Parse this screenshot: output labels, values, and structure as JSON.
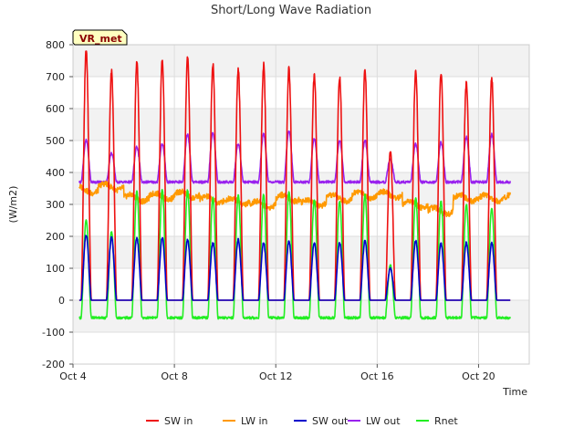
{
  "chart_data": {
    "type": "line",
    "title": "Short/Long Wave Radiation",
    "xlabel": "Time",
    "ylabel": "(W/m2)",
    "badge": "VR_met",
    "ylim": [
      -200,
      800
    ],
    "yticks": [
      -200,
      -100,
      0,
      100,
      200,
      300,
      400,
      500,
      600,
      700,
      800
    ],
    "xlim": [
      "2023-10-04",
      "2023-10-22"
    ],
    "xticks": [
      {
        "date": "2023-10-04",
        "label": "Oct 4"
      },
      {
        "date": "2023-10-08",
        "label": "Oct 8"
      },
      {
        "date": "2023-10-12",
        "label": "Oct 12"
      },
      {
        "date": "2023-10-16",
        "label": "Oct 16"
      },
      {
        "date": "2023-10-20",
        "label": "Oct 20"
      }
    ],
    "grid": true,
    "legend_position": "bottom",
    "series": [
      {
        "name": "SW in",
        "color": "#ee1111",
        "daily_peaks": [
          780,
          715,
          745,
          755,
          760,
          735,
          720,
          735,
          725,
          705,
          700,
          725,
          470,
          720,
          715,
          685,
          695
        ]
      },
      {
        "name": "LW in",
        "color": "#ff9900",
        "daily_levels": [
          345,
          355,
          320,
          325,
          330,
          315,
          310,
          300,
          320,
          305,
          320,
          330,
          330,
          300,
          280,
          320,
          320
        ]
      },
      {
        "name": "SW out",
        "color": "#0000cc",
        "daily_peaks": [
          205,
          195,
          195,
          195,
          190,
          180,
          190,
          180,
          185,
          180,
          180,
          185,
          100,
          185,
          180,
          180,
          180
        ]
      },
      {
        "name": "LW out",
        "color": "#9922ee",
        "daily_peaks": [
          500,
          460,
          480,
          490,
          520,
          525,
          490,
          520,
          530,
          505,
          500,
          500,
          440,
          490,
          495,
          510,
          520
        ],
        "night_level": 370
      },
      {
        "name": "Rnet",
        "color": "#22ee22",
        "daily_peaks": [
          250,
          215,
          340,
          345,
          345,
          320,
          330,
          330,
          340,
          315,
          310,
          330,
          110,
          320,
          310,
          300,
          290
        ],
        "night_level": -55
      }
    ],
    "days": [
      "Oct 4",
      "Oct 5",
      "Oct 6",
      "Oct 7",
      "Oct 8",
      "Oct 9",
      "Oct 10",
      "Oct 11",
      "Oct 12",
      "Oct 13",
      "Oct 14",
      "Oct 15",
      "Oct 16",
      "Oct 17",
      "Oct 18",
      "Oct 19",
      "Oct 20"
    ]
  }
}
